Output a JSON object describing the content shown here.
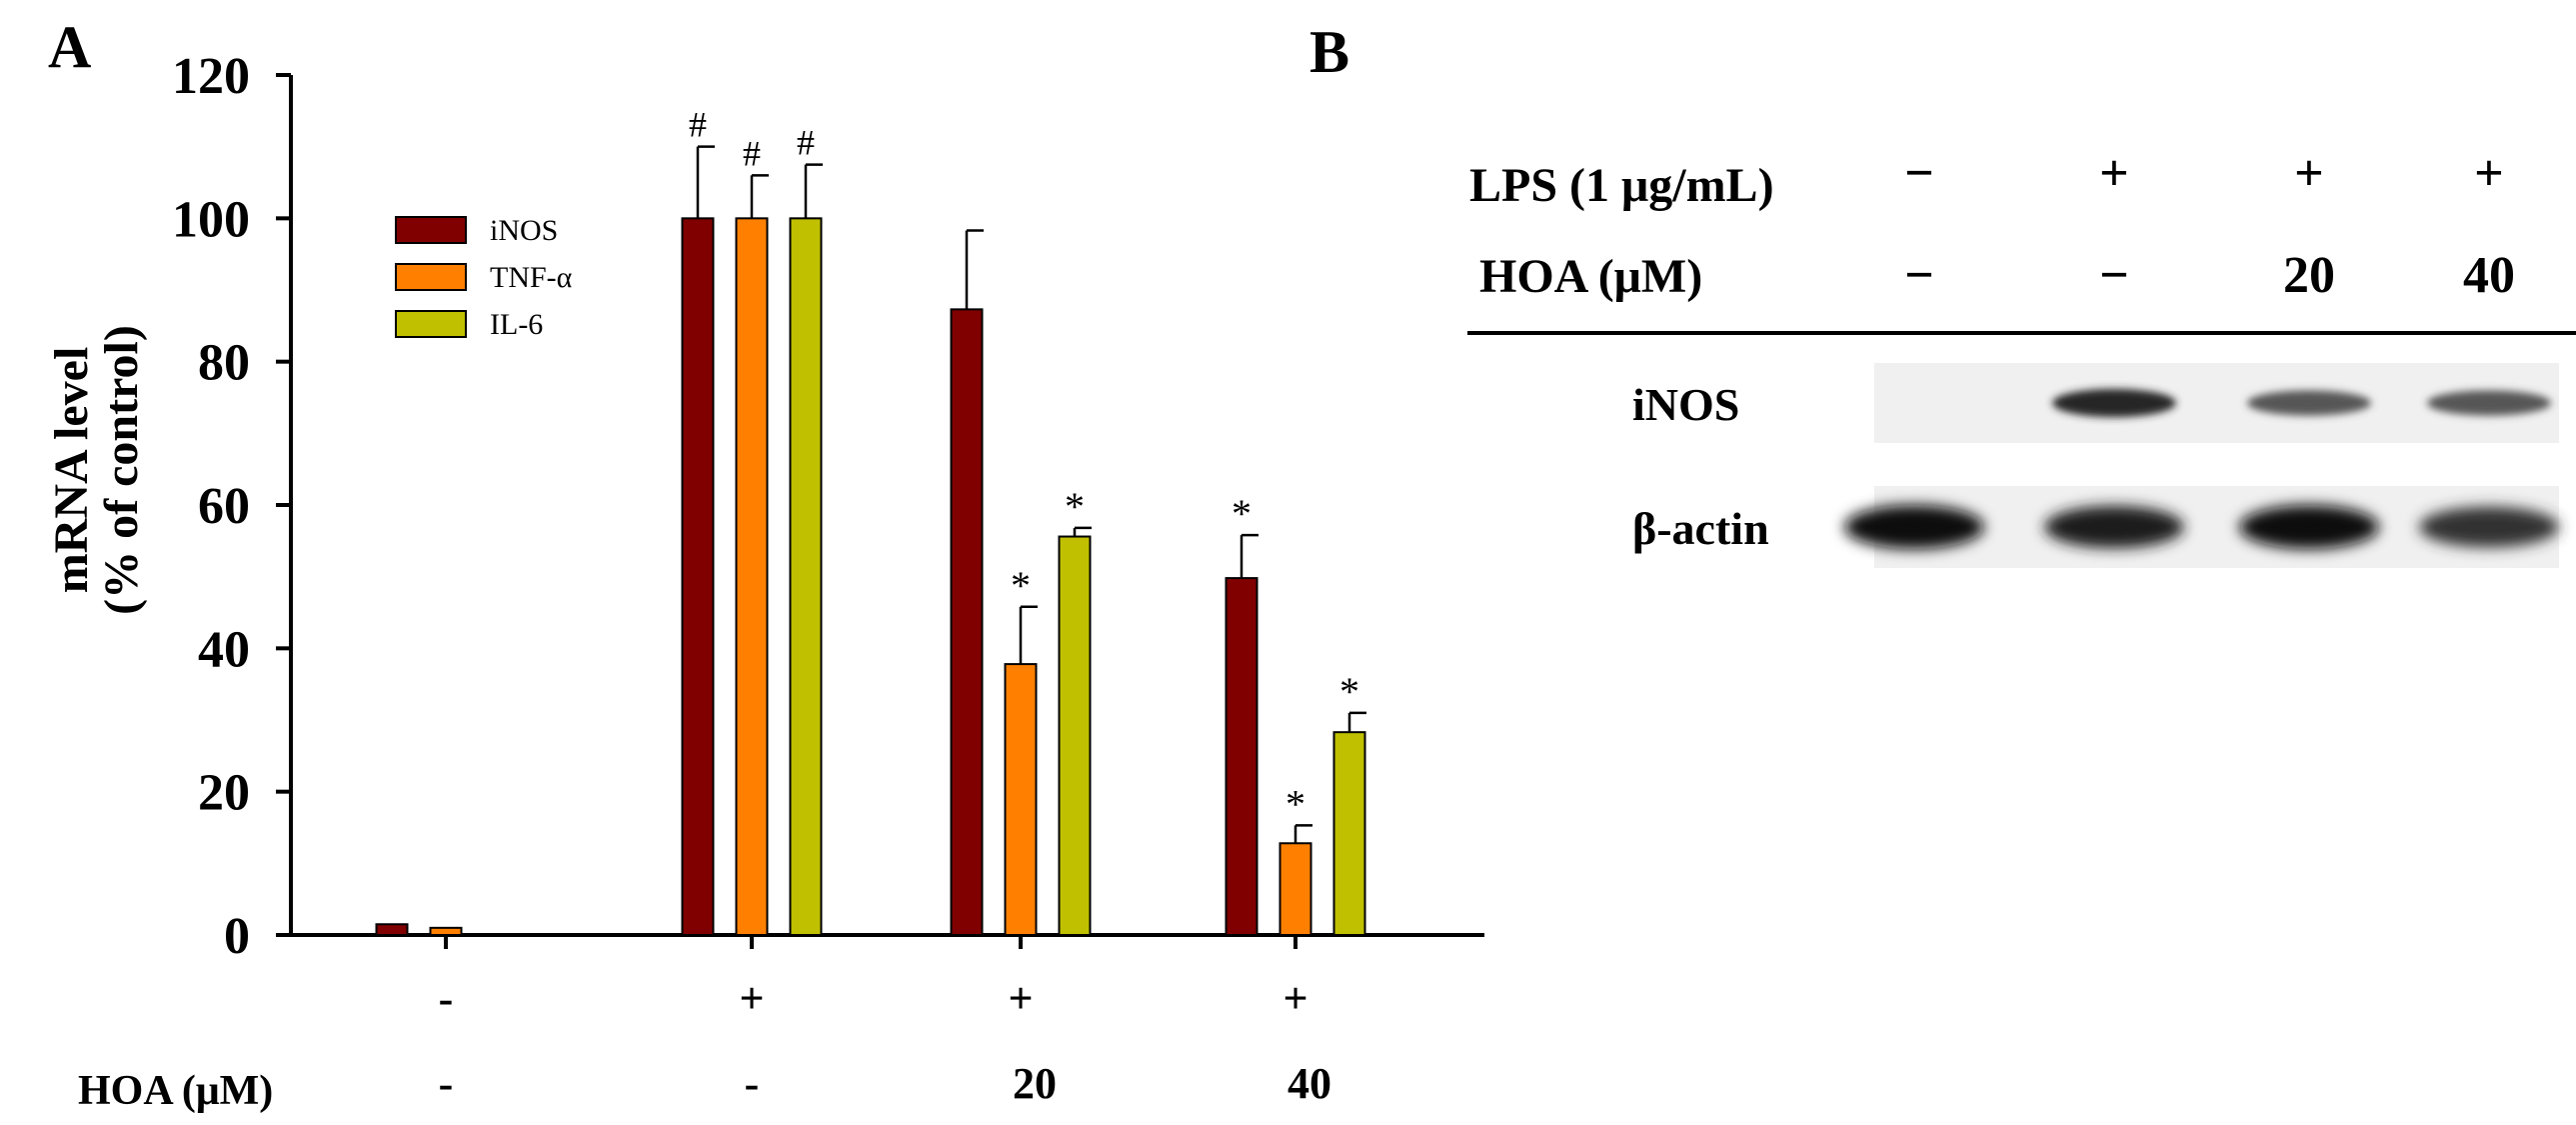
{
  "panel_a": {
    "label": "A",
    "chart_data": {
      "type": "bar",
      "ylabel_line1": "mRNA level",
      "ylabel_line2": "(% of control)",
      "ylim": [
        0,
        120
      ],
      "yticks": [
        "0",
        "20",
        "40",
        "60",
        "80",
        "100",
        "120"
      ],
      "ytick_values": [
        0,
        20,
        40,
        60,
        80,
        100,
        120
      ],
      "lps_labels": [
        "-",
        "+",
        "+",
        "+"
      ],
      "hoa_label": "HOA (μM)",
      "hoa_labels": [
        "-",
        "-",
        "20",
        "40"
      ],
      "legend": [
        "iNOS",
        "TNF-α",
        "IL-6"
      ],
      "colors": [
        "#800000",
        "#ff8000",
        "#c0c000"
      ],
      "series": [
        {
          "name": "iNOS",
          "values": [
            1.5,
            100,
            87.3,
            49.8
          ],
          "errors": [
            0,
            10,
            11,
            6
          ],
          "marks": [
            "",
            "#",
            "",
            "*"
          ]
        },
        {
          "name": "TNF-α",
          "values": [
            1.0,
            100,
            37.8,
            12.8
          ],
          "errors": [
            0,
            6,
            8,
            2.5
          ],
          "marks": [
            "",
            "#",
            "*",
            "*"
          ]
        },
        {
          "name": "IL-6",
          "values": [
            0,
            100,
            55.6,
            28.3
          ],
          "errors": [
            0,
            7.5,
            1.2,
            2.7
          ],
          "marks": [
            "",
            "#",
            "*",
            "*"
          ]
        }
      ]
    }
  },
  "panel_b": {
    "label": "B",
    "lps_label": "LPS (1 μg/mL)",
    "lps_values": [
      "−",
      "+",
      "+",
      "+"
    ],
    "hoa_label": "HOA (μM)",
    "hoa_values": [
      "−",
      "−",
      "20",
      "40"
    ],
    "rows": [
      {
        "name": "iNOS",
        "intensity": [
          0,
          0.85,
          0.6,
          0.6
        ]
      },
      {
        "name": "β-actin",
        "intensity": [
          1,
          0.9,
          1,
          0.8
        ]
      }
    ]
  }
}
